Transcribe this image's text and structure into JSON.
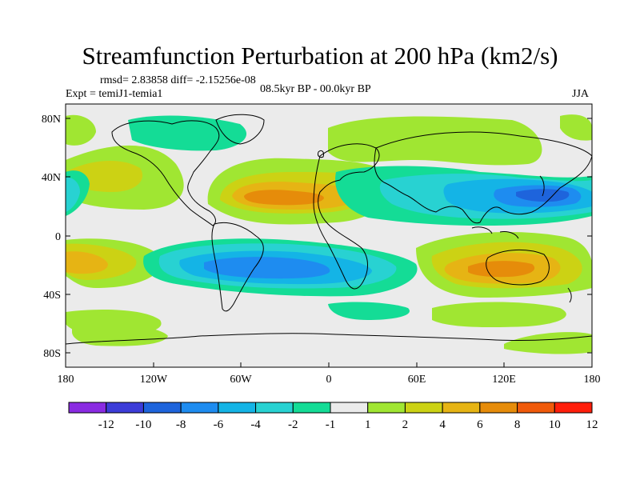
{
  "title": "Streamfunction Perturbation at 200 hPa (km2/s)",
  "stats": {
    "rmsd_text": "rmsd= 2.83858 diff= -2.15256e-08"
  },
  "expt_text": "Expt = temiJ1-temia1",
  "period_text": "08.5kyr BP - 00.0kyr BP",
  "season": "JJA",
  "lat_labels": [
    "80N",
    "40N",
    "0",
    "40S",
    "80S"
  ],
  "lon_labels": [
    "180",
    "120W",
    "60W",
    "0",
    "60E",
    "120E",
    "180"
  ],
  "colorbar": {
    "colors": [
      "#8a2be2",
      "#3c3cd8",
      "#1e64dc",
      "#1e8cf0",
      "#14b4e6",
      "#28d2d2",
      "#14dc96",
      "#ebebeb",
      "#a0e632",
      "#ccd214",
      "#e6b414",
      "#e68c0a",
      "#f05a0a",
      "#ff1e0a"
    ],
    "labels": [
      "-12",
      "-10",
      "-8",
      "-6",
      "-4",
      "-2",
      "-1",
      "1",
      "2",
      "4",
      "6",
      "8",
      "10",
      "12"
    ]
  }
}
